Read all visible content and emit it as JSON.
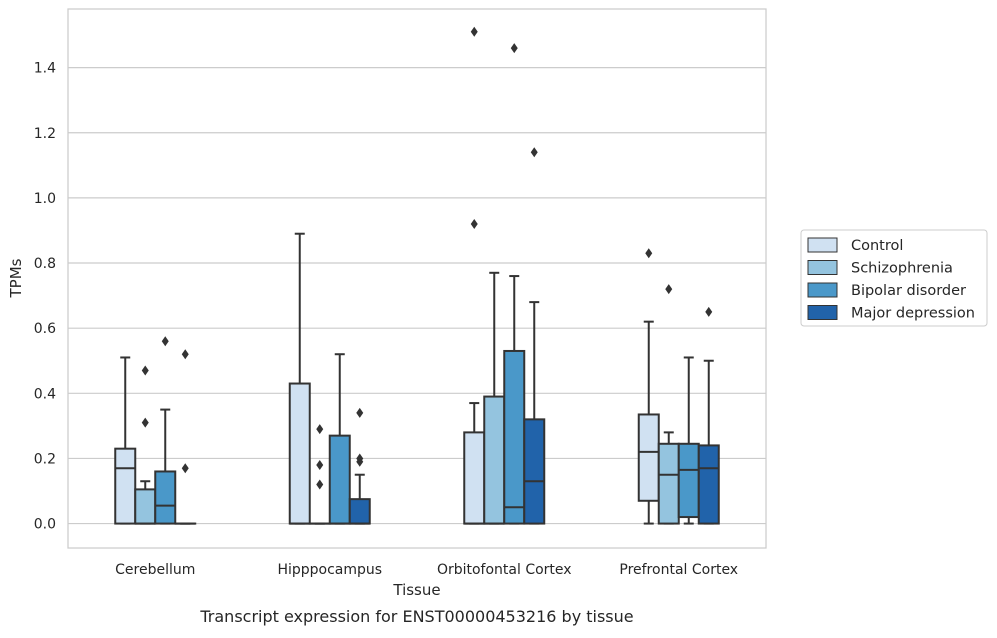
{
  "chart_data": {
    "type": "box",
    "title": "",
    "caption": "Transcript expression for ENST00000453216 by tissue",
    "xlabel": "Tissue",
    "ylabel": "TPMs",
    "ylim": [
      -0.075,
      1.58
    ],
    "yticks": [
      "0.0",
      "0.2",
      "0.4",
      "0.6",
      "0.8",
      "1.0",
      "1.2",
      "1.4"
    ],
    "grid": "horizontal",
    "legend_position": "right",
    "categories": [
      "Cerebellum",
      "Hipppocampus",
      "Orbitofontal Cortex",
      "Prefrontal Cortex"
    ],
    "series": [
      {
        "name": "Control",
        "color": "#d0e1f2",
        "boxes": [
          {
            "whisker_low": 0.0,
            "q1": 0.0,
            "median": 0.17,
            "q3": 0.23,
            "whisker_high": 0.51,
            "outliers": []
          },
          {
            "whisker_low": 0.0,
            "q1": 0.0,
            "median": 0.0,
            "q3": 0.43,
            "whisker_high": 0.89,
            "outliers": []
          },
          {
            "whisker_low": 0.0,
            "q1": 0.0,
            "median": 0.0,
            "q3": 0.28,
            "whisker_high": 0.37,
            "outliers": [
              0.92,
              1.51
            ]
          },
          {
            "whisker_low": 0.0,
            "q1": 0.07,
            "median": 0.22,
            "q3": 0.335,
            "whisker_high": 0.62,
            "outliers": [
              0.83
            ]
          }
        ]
      },
      {
        "name": "Schizophrenia",
        "color": "#94c4df",
        "boxes": [
          {
            "whisker_low": 0.0,
            "q1": 0.0,
            "median": 0.0,
            "q3": 0.105,
            "whisker_high": 0.13,
            "outliers": [
              0.31,
              0.47
            ]
          },
          {
            "whisker_low": 0.0,
            "q1": 0.0,
            "median": 0.0,
            "q3": 0.0,
            "whisker_high": 0.0,
            "outliers": [
              0.12,
              0.18,
              0.29
            ]
          },
          {
            "whisker_low": 0.0,
            "q1": 0.0,
            "median": 0.0,
            "q3": 0.39,
            "whisker_high": 0.77,
            "outliers": []
          },
          {
            "whisker_low": 0.0,
            "q1": 0.0,
            "median": 0.15,
            "q3": 0.245,
            "whisker_high": 0.28,
            "outliers": [
              0.72
            ]
          }
        ]
      },
      {
        "name": "Bipolar disorder",
        "color": "#4a98c9",
        "boxes": [
          {
            "whisker_low": 0.0,
            "q1": 0.0,
            "median": 0.055,
            "q3": 0.16,
            "whisker_high": 0.35,
            "outliers": [
              0.56
            ]
          },
          {
            "whisker_low": 0.0,
            "q1": 0.0,
            "median": 0.0,
            "q3": 0.27,
            "whisker_high": 0.52,
            "outliers": []
          },
          {
            "whisker_low": 0.0,
            "q1": 0.0,
            "median": 0.05,
            "q3": 0.53,
            "whisker_high": 0.76,
            "outliers": [
              1.46
            ]
          },
          {
            "whisker_low": 0.0,
            "q1": 0.02,
            "median": 0.165,
            "q3": 0.245,
            "whisker_high": 0.51,
            "outliers": []
          }
        ]
      },
      {
        "name": "Major depression",
        "color": "#2163aa",
        "boxes": [
          {
            "whisker_low": 0.0,
            "q1": 0.0,
            "median": 0.0,
            "q3": 0.0,
            "whisker_high": 0.0,
            "outliers": [
              0.17,
              0.52
            ]
          },
          {
            "whisker_low": 0.0,
            "q1": 0.0,
            "median": 0.0,
            "q3": 0.075,
            "whisker_high": 0.15,
            "outliers": [
              0.19,
              0.2,
              0.34
            ]
          },
          {
            "whisker_low": 0.0,
            "q1": 0.0,
            "median": 0.13,
            "q3": 0.32,
            "whisker_high": 0.68,
            "outliers": [
              1.14
            ]
          },
          {
            "whisker_low": 0.0,
            "q1": 0.0,
            "median": 0.17,
            "q3": 0.24,
            "whisker_high": 0.5,
            "outliers": [
              0.65
            ]
          }
        ]
      }
    ]
  }
}
